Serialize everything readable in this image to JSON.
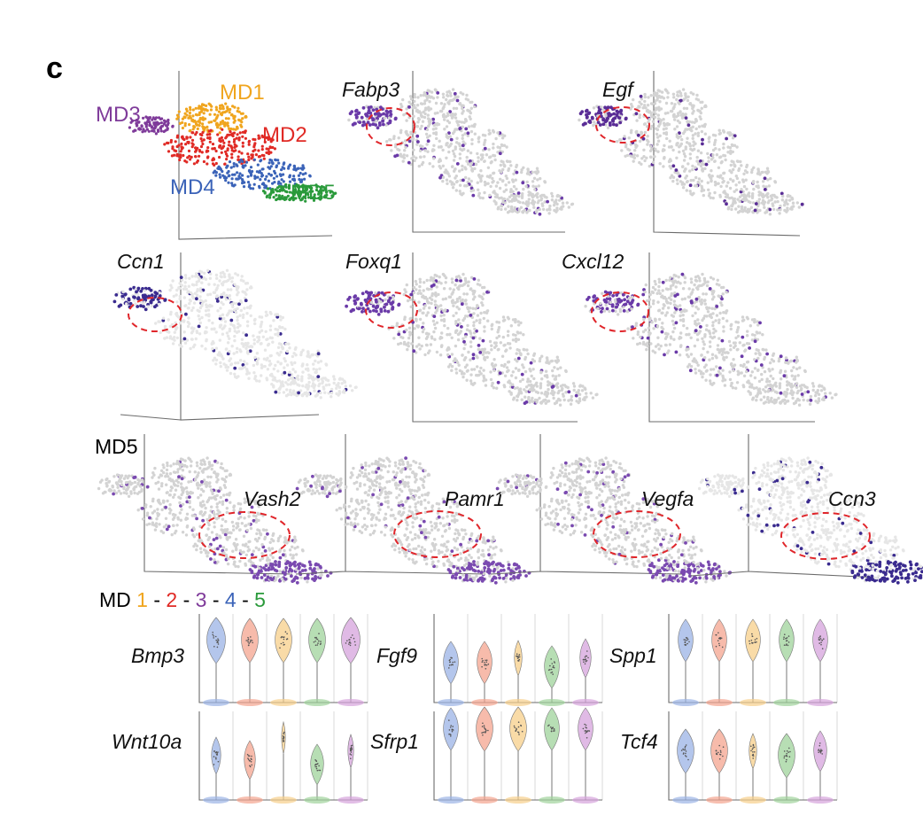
{
  "panel_letter": "c",
  "chart_data": [
    {
      "type": "scatter",
      "subtype": "umap-cluster-map",
      "clusters": [
        {
          "name": "MD1",
          "color": "#f0a51e"
        },
        {
          "name": "MD2",
          "color": "#e02a25"
        },
        {
          "name": "MD3",
          "color": "#7f3b9a"
        },
        {
          "name": "MD4",
          "color": "#3b63b8"
        },
        {
          "name": "MD5",
          "color": "#2a9a3b"
        }
      ]
    },
    {
      "type": "scatter",
      "subtype": "feature-plot",
      "gene": "Fabp3",
      "highlight": "MD3",
      "expr_color": "#6a3aa8"
    },
    {
      "type": "scatter",
      "subtype": "feature-plot",
      "gene": "Egf",
      "highlight": "MD3",
      "expr_color": "#5a2d96"
    },
    {
      "type": "scatter",
      "subtype": "feature-plot",
      "gene": "Ccn1",
      "highlight": "MD3",
      "expr_color": "#3a2b8f"
    },
    {
      "type": "scatter",
      "subtype": "feature-plot",
      "gene": "Foxq1",
      "highlight": "MD3",
      "expr_color": "#6a3aa8"
    },
    {
      "type": "scatter",
      "subtype": "feature-plot",
      "gene": "Cxcl12",
      "highlight": "MD3",
      "expr_color": "#6a3aa8"
    },
    {
      "type": "scatter",
      "subtype": "feature-plot",
      "row_label": "MD5",
      "gene": "Vash2",
      "highlight": "MD5",
      "expr_color": "#7a4ab0"
    },
    {
      "type": "scatter",
      "subtype": "feature-plot",
      "gene": "Pamr1",
      "highlight": "MD5",
      "expr_color": "#7a4ab0"
    },
    {
      "type": "scatter",
      "subtype": "feature-plot",
      "gene": "Vegfa",
      "highlight": "MD5",
      "expr_color": "#7a4ab0"
    },
    {
      "type": "scatter",
      "subtype": "feature-plot",
      "gene": "Ccn3",
      "highlight": "MD5",
      "expr_color": "#3a2b8f"
    },
    {
      "type": "violin",
      "legend": {
        "prefix": "MD",
        "items": [
          "1",
          "2",
          "3",
          "4",
          "5"
        ],
        "separator": "-",
        "colors": [
          "#f0a51e",
          "#e02a25",
          "#7f3b9a",
          "#3b63b8",
          "#2a9a3b"
        ]
      },
      "violin_colors": [
        "#9bb3e6",
        "#f4a48f",
        "#f7cf8a",
        "#9fd39b",
        "#d6a3dc"
      ],
      "genes": [
        "Bmp3",
        "Fgf9",
        "Spp1",
        "Wnt10a",
        "Sfrp1",
        "Tcf4"
      ]
    }
  ]
}
